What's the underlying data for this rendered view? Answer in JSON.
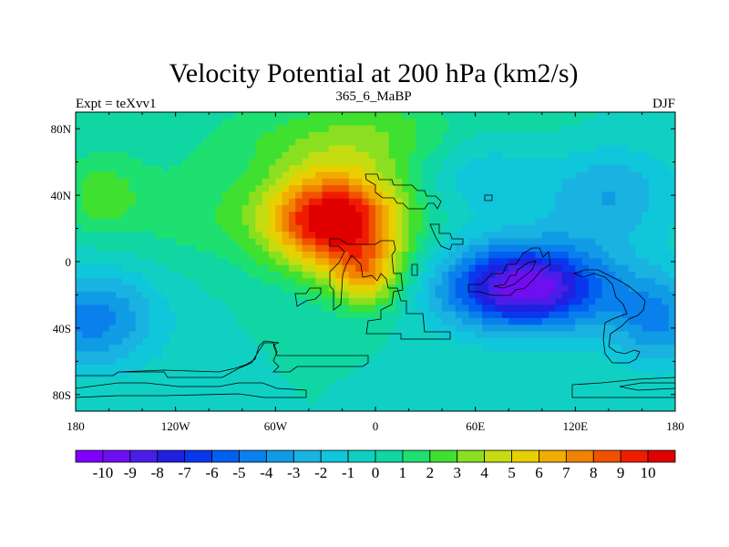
{
  "chart_data": {
    "type": "heatmap",
    "title": "Velocity Potential at 200 hPa (km2/s)",
    "left_label": "Expt = teXvv1",
    "center_label": "365_6_MaBP",
    "right_label": "DJF",
    "x_ticks": [
      "180",
      "120W",
      "60W",
      "0",
      "60E",
      "120E",
      "180"
    ],
    "x_tick_values": [
      -180,
      -120,
      -60,
      0,
      60,
      120,
      180
    ],
    "y_ticks": [
      "80N",
      "40N",
      "0",
      "40S",
      "80S"
    ],
    "y_tick_values": [
      80,
      40,
      0,
      -40,
      -80
    ],
    "xlim": [
      -180,
      180
    ],
    "ylim": [
      -90,
      90
    ],
    "colorbar_labels": [
      "-10",
      "-9",
      "-8",
      "-7",
      "-6",
      "-5",
      "-4",
      "-3",
      "-2",
      "-1",
      "0",
      "1",
      "2",
      "3",
      "4",
      "5",
      "6",
      "7",
      "8",
      "9",
      "10"
    ],
    "levels": [
      -10,
      -9,
      -8,
      -7,
      -6,
      -5,
      -4,
      -3,
      -2,
      -1,
      0,
      1,
      2,
      3,
      4,
      5,
      6,
      7,
      8,
      9,
      10
    ],
    "colormap": [
      "#7f00ff",
      "#6d0ff0",
      "#4a1ee8",
      "#2020e0",
      "#0a37ee",
      "#0060f0",
      "#0a80ec",
      "#109ce4",
      "#1ab2e0",
      "#10c6da",
      "#10d0c4",
      "#10d6a4",
      "#1ee070",
      "#40e030",
      "#8ae020",
      "#c4dc10",
      "#e8d000",
      "#f0ac00",
      "#f08400",
      "#f05200",
      "#f01c00",
      "#e00000"
    ],
    "field_description": "positive maximum ~10 over north Atlantic/Africa (-20 lon, 25 lat); negative minimum ~-9 over Indian Ocean/Australia (90 lon, -15 lat)"
  }
}
